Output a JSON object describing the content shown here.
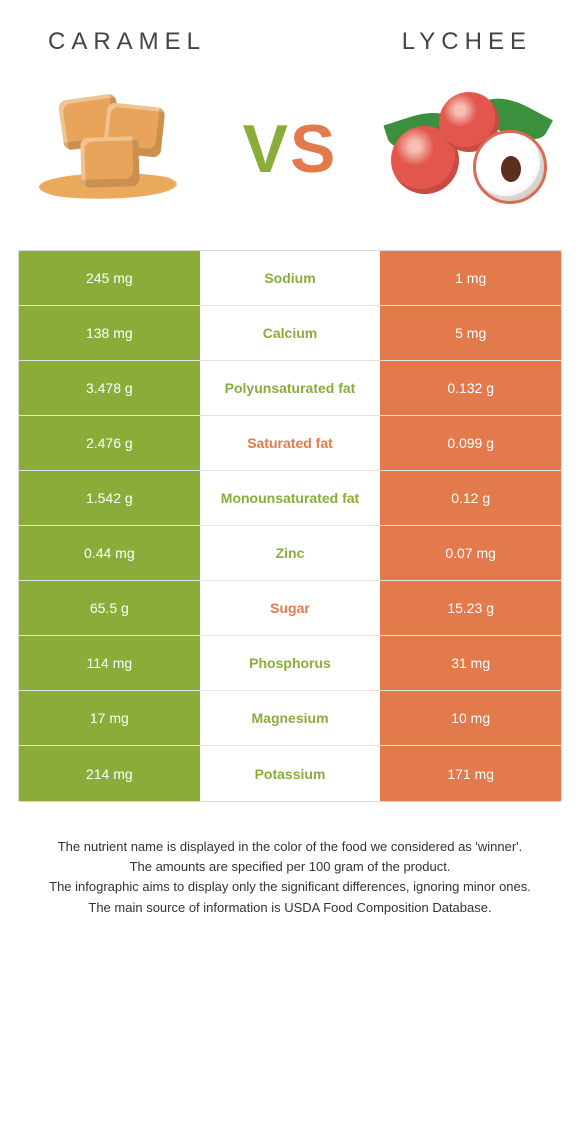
{
  "header": {
    "left_title": "Caramel",
    "right_title": "Lychee",
    "vs_v": "V",
    "vs_s": "S"
  },
  "colors": {
    "green": "#8aad3a",
    "orange": "#e27a4b",
    "row_border": "#e3e3e3",
    "text_dark": "#333333"
  },
  "left_icon": "caramel-icon",
  "right_icon": "lychee-icon",
  "rows": [
    {
      "left": "245 mg",
      "label": "Sodium",
      "right": "1 mg",
      "winner": "green"
    },
    {
      "left": "138 mg",
      "label": "Calcium",
      "right": "5 mg",
      "winner": "green"
    },
    {
      "left": "3.478 g",
      "label": "Polyunsaturated fat",
      "right": "0.132 g",
      "winner": "green"
    },
    {
      "left": "2.476 g",
      "label": "Saturated fat",
      "right": "0.099 g",
      "winner": "orange"
    },
    {
      "left": "1.542 g",
      "label": "Monounsaturated fat",
      "right": "0.12 g",
      "winner": "green"
    },
    {
      "left": "0.44 mg",
      "label": "Zinc",
      "right": "0.07 mg",
      "winner": "green"
    },
    {
      "left": "65.5 g",
      "label": "Sugar",
      "right": "15.23 g",
      "winner": "orange"
    },
    {
      "left": "114 mg",
      "label": "Phosphorus",
      "right": "31 mg",
      "winner": "green"
    },
    {
      "left": "17 mg",
      "label": "Magnesium",
      "right": "10 mg",
      "winner": "green"
    },
    {
      "left": "214 mg",
      "label": "Potassium",
      "right": "171 mg",
      "winner": "green"
    }
  ],
  "footer": {
    "l1": "The nutrient name is displayed in the color of the food we considered as 'winner'.",
    "l2": "The amounts are specified per 100 gram of the product.",
    "l3": "The infographic aims to display only the significant differences, ignoring minor ones.",
    "l4": "The main source of information is USDA Food Composition Database."
  }
}
